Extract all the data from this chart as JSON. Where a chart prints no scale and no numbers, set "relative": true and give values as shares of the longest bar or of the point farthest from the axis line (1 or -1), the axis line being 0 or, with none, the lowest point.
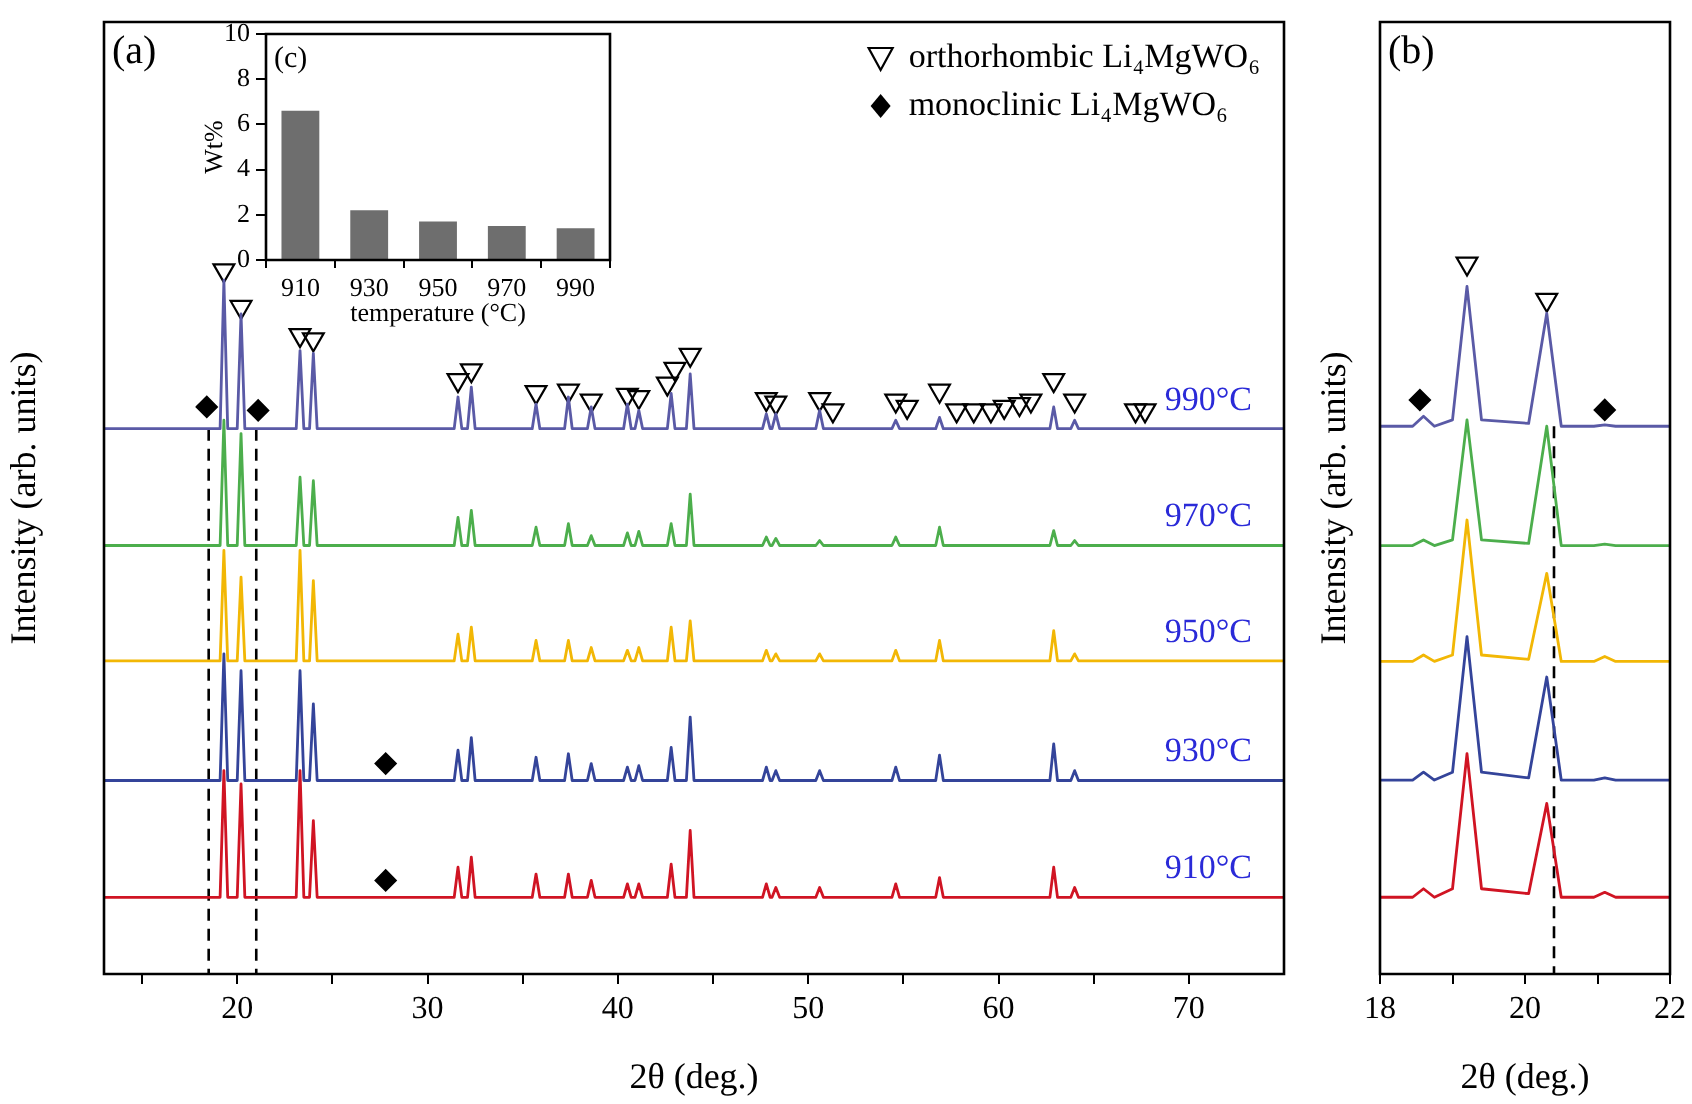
{
  "chart_data": [
    {
      "type": "line",
      "relative": true,
      "xlabel": "2θ (deg.)",
      "ylabel": "Intensity (arb. units)",
      "xlim": [
        13,
        75
      ],
      "xticks": [
        {
          "value": 15,
          "label": null
        },
        20,
        {
          "value": 25,
          "label": null
        },
        30,
        {
          "value": 35,
          "label": null
        },
        40,
        {
          "value": 45,
          "label": null
        },
        50,
        {
          "value": 55,
          "label": null
        },
        60,
        {
          "value": 65,
          "label": null
        },
        70
      ],
      "legend": "top right",
      "x": [
        13,
        19.1,
        19.3,
        19.5,
        20.0,
        20.2,
        20.4,
        23.1,
        23.3,
        23.5,
        23.8,
        24.0,
        24.2,
        31.4,
        31.6,
        31.8,
        32.1,
        32.3,
        32.5,
        35.5,
        35.7,
        35.9,
        37.2,
        37.4,
        37.6,
        38.4,
        38.6,
        38.8,
        40.3,
        40.5,
        40.7,
        40.9,
        41.1,
        41.3,
        42.6,
        42.8,
        43.0,
        43.6,
        43.8,
        44.0,
        47.6,
        47.8,
        48.0,
        48.1,
        48.3,
        48.5,
        50.4,
        50.6,
        50.8,
        54.4,
        54.6,
        54.8,
        56.7,
        56.9,
        57.1,
        62.7,
        62.9,
        63.1,
        63.8,
        64.0,
        64.2,
        75
      ],
      "series": [
        {
          "name": "990°C",
          "color": "#5a5aa6",
          "values": [
            0.775,
            0.775,
            0.986,
            0.775,
            0.775,
            0.938,
            0.775,
            0.775,
            0.886,
            0.775,
            0.775,
            0.882,
            0.775,
            0.775,
            0.82,
            0.775,
            0.775,
            0.834,
            0.775,
            0.775,
            0.81,
            0.775,
            0.775,
            0.82,
            0.775,
            0.775,
            0.806,
            0.775,
            0.775,
            0.81,
            0.775,
            0.775,
            0.801,
            0.775,
            0.775,
            0.825,
            0.775,
            0.775,
            0.853,
            0.775,
            0.775,
            0.796,
            0.775,
            0.775,
            0.796,
            0.775,
            0.775,
            0.801,
            0.775,
            0.775,
            0.787,
            0.775,
            0.775,
            0.791,
            0.775,
            0.775,
            0.806,
            0.775,
            0.775,
            0.787,
            0.775,
            0.775
          ]
        },
        {
          "name": "970°C",
          "color": "#4cae4c",
          "values": [
            0.609,
            0.609,
            0.787,
            0.609,
            0.609,
            0.768,
            0.609,
            0.609,
            0.706,
            0.609,
            0.609,
            0.701,
            0.609,
            0.609,
            0.649,
            0.609,
            0.609,
            0.659,
            0.609,
            0.609,
            0.635,
            0.609,
            0.609,
            0.64,
            0.609,
            0.609,
            0.623,
            0.609,
            0.609,
            0.627,
            0.609,
            0.609,
            0.629,
            0.609,
            0.609,
            0.64,
            0.609,
            0.609,
            0.682,
            0.609,
            0.609,
            0.621,
            0.609,
            0.609,
            0.619,
            0.609,
            0.609,
            0.616,
            0.609,
            0.609,
            0.621,
            0.609,
            0.609,
            0.635,
            0.609,
            0.609,
            0.63,
            0.609,
            0.609,
            0.616,
            0.609,
            0.609
          ]
        },
        {
          "name": "950°C",
          "color": "#f2b705",
          "values": [
            0.445,
            0.445,
            0.602,
            0.445,
            0.445,
            0.564,
            0.445,
            0.445,
            0.602,
            0.445,
            0.445,
            0.559,
            0.445,
            0.445,
            0.483,
            0.445,
            0.445,
            0.493,
            0.445,
            0.445,
            0.474,
            0.445,
            0.445,
            0.474,
            0.445,
            0.445,
            0.464,
            0.445,
            0.445,
            0.46,
            0.445,
            0.445,
            0.464,
            0.445,
            0.445,
            0.493,
            0.445,
            0.445,
            0.502,
            0.445,
            0.445,
            0.46,
            0.445,
            0.445,
            0.455,
            0.445,
            0.445,
            0.455,
            0.445,
            0.445,
            0.46,
            0.445,
            0.445,
            0.474,
            0.445,
            0.445,
            0.488,
            0.445,
            0.445,
            0.455,
            0.445,
            0.445
          ]
        },
        {
          "name": "930°C",
          "color": "#34449a",
          "values": [
            0.275,
            0.275,
            0.455,
            0.275,
            0.275,
            0.431,
            0.275,
            0.275,
            0.431,
            0.275,
            0.275,
            0.384,
            0.275,
            0.275,
            0.318,
            0.275,
            0.275,
            0.336,
            0.275,
            0.275,
            0.308,
            0.275,
            0.275,
            0.313,
            0.275,
            0.275,
            0.299,
            0.275,
            0.275,
            0.294,
            0.275,
            0.275,
            0.296,
            0.275,
            0.275,
            0.322,
            0.275,
            0.275,
            0.365,
            0.275,
            0.275,
            0.294,
            0.275,
            0.275,
            0.289,
            0.275,
            0.275,
            0.289,
            0.275,
            0.275,
            0.294,
            0.275,
            0.275,
            0.311,
            0.275,
            0.275,
            0.327,
            0.275,
            0.275,
            0.289,
            0.275,
            0.275
          ]
        },
        {
          "name": "910°C",
          "color": "#d01423",
          "values": [
            0.109,
            0.109,
            0.289,
            0.109,
            0.109,
            0.27,
            0.109,
            0.109,
            0.289,
            0.109,
            0.109,
            0.218,
            0.109,
            0.109,
            0.152,
            0.109,
            0.109,
            0.166,
            0.109,
            0.109,
            0.142,
            0.109,
            0.109,
            0.142,
            0.109,
            0.109,
            0.133,
            0.109,
            0.109,
            0.128,
            0.109,
            0.109,
            0.128,
            0.109,
            0.109,
            0.156,
            0.109,
            0.109,
            0.204,
            0.109,
            0.109,
            0.128,
            0.109,
            0.109,
            0.123,
            0.109,
            0.109,
            0.123,
            0.109,
            0.109,
            0.128,
            0.109,
            0.109,
            0.137,
            0.109,
            0.109,
            0.152,
            0.109,
            0.109,
            0.123,
            0.109,
            0.109
          ]
        },
        {
          "type": "scatter",
          "name": "orthorhombic Li₄MgWO₆",
          "marker": "triangle",
          "color": "#000000",
          "x": [
            19.3,
            20.2,
            23.3,
            24.0,
            31.6,
            32.3,
            35.7,
            37.4,
            38.6,
            40.5,
            41.1,
            42.6,
            43.0,
            43.8,
            47.8,
            48.3,
            50.6,
            51.3,
            54.6,
            55.2,
            56.9,
            57.8,
            58.7,
            59.6,
            60.3,
            61.1,
            61.7,
            62.9,
            64.0,
            67.2,
            67.7
          ],
          "values": [
            1.0,
            0.948,
            0.908,
            0.902,
            0.844,
            0.858,
            0.827,
            0.829,
            0.815,
            0.823,
            0.82,
            0.839,
            0.86,
            0.88,
            0.817,
            0.812,
            0.817,
            0.801,
            0.815,
            0.806,
            0.829,
            0.801,
            0.801,
            0.801,
            0.806,
            0.81,
            0.815,
            0.844,
            0.815,
            0.801,
            0.801
          ]
        },
        {
          "type": "scatter",
          "name": "monoclinic Li₄MgWO₆",
          "marker": "diamond",
          "color": "#000000",
          "x": [
            18.4,
            21.1,
            27.8,
            27.8
          ],
          "values": [
            0.806,
            0.801,
            0.299,
            0.133
          ]
        }
      ],
      "ref_lines": [
        {
          "axis": "x",
          "value": 18.5,
          "line_style": "dashed",
          "color": "#000000"
        },
        {
          "axis": "x",
          "value": 21.0,
          "line_style": "dashed",
          "color": "#000000"
        }
      ],
      "annotations": [
        "(a)"
      ]
    },
    {
      "type": "line",
      "relative": true,
      "xlabel": "2θ (deg.)",
      "ylabel": "Intensity (arb. units)",
      "xlim": [
        18,
        22
      ],
      "xticks": [
        18,
        {
          "value": 19,
          "label": null
        },
        20,
        {
          "value": 21,
          "label": null
        },
        22
      ],
      "x": [
        18,
        18.45,
        18.6,
        18.75,
        19.0,
        19.2,
        19.4,
        20.05,
        20.3,
        20.5,
        20.95,
        21.1,
        21.25,
        22
      ],
      "series": [
        {
          "color": "#5a5aa6",
          "values": [
            0.771,
            0.771,
            0.785,
            0.771,
            0.78,
            0.968,
            0.78,
            0.775,
            0.93,
            0.771,
            0.771,
            0.773,
            0.771,
            0.771
          ]
        },
        {
          "color": "#4cae4c",
          "values": [
            0.603,
            0.603,
            0.611,
            0.603,
            0.611,
            0.78,
            0.611,
            0.606,
            0.771,
            0.603,
            0.603,
            0.605,
            0.603,
            0.603
          ]
        },
        {
          "color": "#f2b705",
          "values": [
            0.44,
            0.44,
            0.449,
            0.44,
            0.449,
            0.639,
            0.449,
            0.443,
            0.564,
            0.44,
            0.44,
            0.447,
            0.44,
            0.44
          ]
        },
        {
          "color": "#34449a",
          "values": [
            0.273,
            0.273,
            0.284,
            0.273,
            0.284,
            0.475,
            0.284,
            0.276,
            0.418,
            0.273,
            0.273,
            0.276,
            0.273,
            0.273
          ]
        },
        {
          "color": "#d01423",
          "values": [
            0.108,
            0.108,
            0.12,
            0.108,
            0.12,
            0.31,
            0.12,
            0.113,
            0.24,
            0.108,
            0.108,
            0.115,
            0.108,
            0.108
          ]
        },
        {
          "type": "scatter",
          "marker": "triangle",
          "color": "#000000",
          "x": [
            19.2,
            20.3
          ],
          "values": [
            1.0,
            0.949
          ]
        },
        {
          "type": "scatter",
          "marker": "diamond",
          "color": "#000000",
          "x": [
            18.55,
            21.1
          ],
          "values": [
            0.808,
            0.794
          ]
        }
      ],
      "ref_lines": [
        {
          "axis": "x",
          "value": 20.4,
          "line_style": "dashed",
          "color": "#000000"
        }
      ],
      "annotations": [
        "(b)"
      ]
    },
    {
      "type": "bar",
      "categories": [
        "910",
        "930",
        "950",
        "970",
        "990"
      ],
      "values": [
        6.6,
        2.2,
        1.7,
        1.5,
        1.4
      ],
      "color": "#6e6e6e",
      "ylim": [
        0,
        10
      ],
      "yticks": [
        0,
        2,
        4,
        6,
        8,
        10
      ],
      "xlabel": "temperature (°C)",
      "ylabel": "Wt%",
      "annotations": [
        "(c)"
      ]
    }
  ]
}
